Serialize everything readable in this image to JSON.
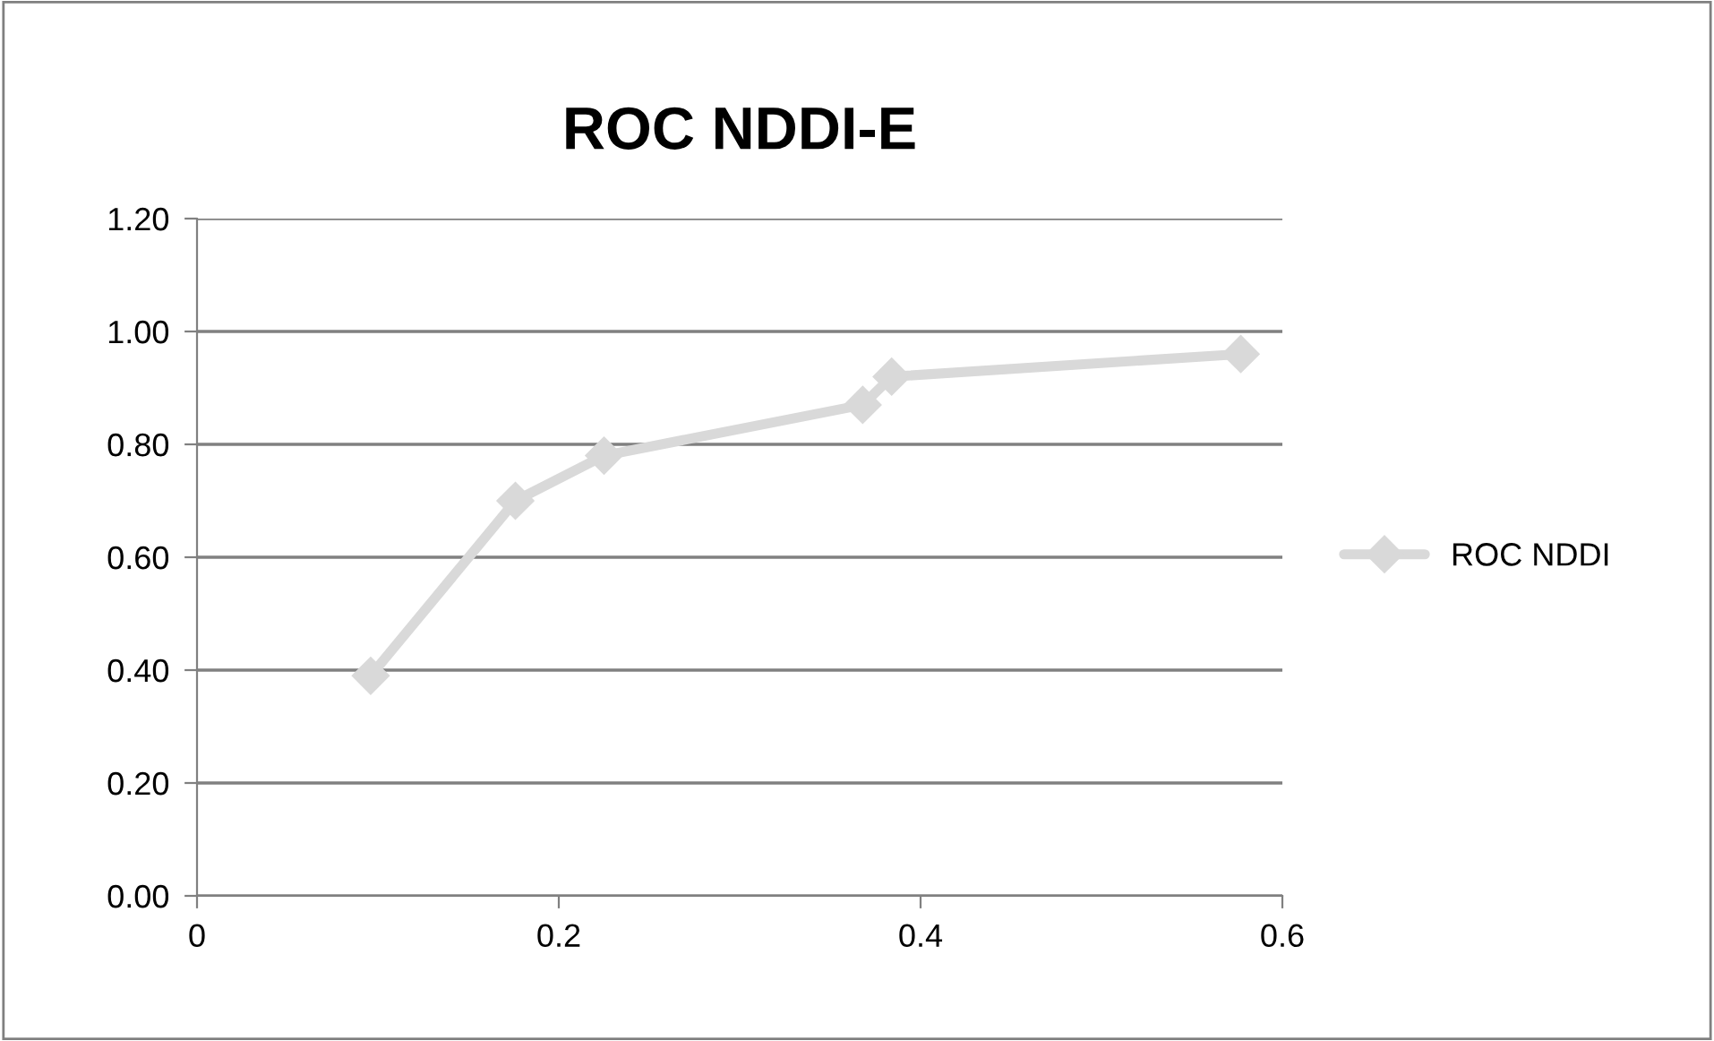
{
  "chart_data": {
    "type": "line",
    "title": "ROC NDDI-E",
    "x": [
      0.096,
      0.176,
      0.225,
      0.368,
      0.384,
      0.577
    ],
    "series": [
      {
        "name": "ROC NDDI",
        "color": "#d9d9d9",
        "values": [
          0.39,
          0.7,
          0.78,
          0.87,
          0.92,
          0.96
        ]
      }
    ],
    "xlim": [
      0,
      0.6
    ],
    "xticks": [
      0,
      0.2,
      0.4,
      0.6
    ],
    "ylim": [
      0,
      1.2
    ],
    "yticks": [
      {
        "value": 0,
        "label": "0.00"
      },
      {
        "value": 0.2,
        "label": "0.20"
      },
      {
        "value": 0.4,
        "label": "0.40"
      },
      {
        "value": 0.6,
        "label": "0.60"
      },
      {
        "value": 0.8,
        "label": "0.80"
      },
      {
        "value": 1.0,
        "label": "1.00"
      },
      {
        "value": 1.2,
        "label": "1.20"
      }
    ],
    "grid": "y",
    "legend": "right",
    "marker": "diamond",
    "line_style": "solid"
  }
}
